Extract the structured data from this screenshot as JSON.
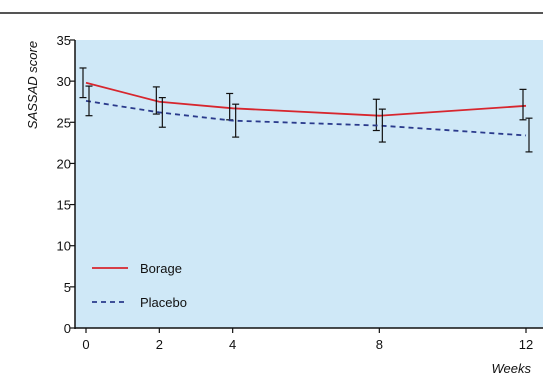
{
  "chart_data": {
    "type": "line",
    "title": "",
    "xlabel": "Weeks",
    "ylabel": "SASSAD score",
    "x": [
      0,
      2,
      4,
      8,
      12
    ],
    "xticks": [
      "0",
      "2",
      "4",
      "8",
      "12"
    ],
    "ylim": [
      0,
      35
    ],
    "yticks": [
      "0",
      "5",
      "10",
      "15",
      "20",
      "25",
      "30",
      "35"
    ],
    "grid": false,
    "background": "#cfe8f7",
    "legend": "bottom-left",
    "series": [
      {
        "name": "Borage",
        "color": "#d7262e",
        "style": "solid",
        "values": [
          29.8,
          27.5,
          26.7,
          25.8,
          27.0
        ],
        "lower": [
          28.0,
          26.0,
          25.3,
          24.0,
          25.3
        ],
        "upper": [
          31.6,
          29.3,
          28.5,
          27.8,
          29.0
        ]
      },
      {
        "name": "Placebo",
        "color": "#2a3a8c",
        "style": "dashed",
        "values": [
          27.6,
          26.2,
          25.2,
          24.6,
          23.4
        ],
        "lower": [
          25.8,
          24.4,
          23.2,
          22.6,
          21.4
        ],
        "upper": [
          29.4,
          28.0,
          27.2,
          26.6,
          25.5
        ]
      }
    ]
  }
}
